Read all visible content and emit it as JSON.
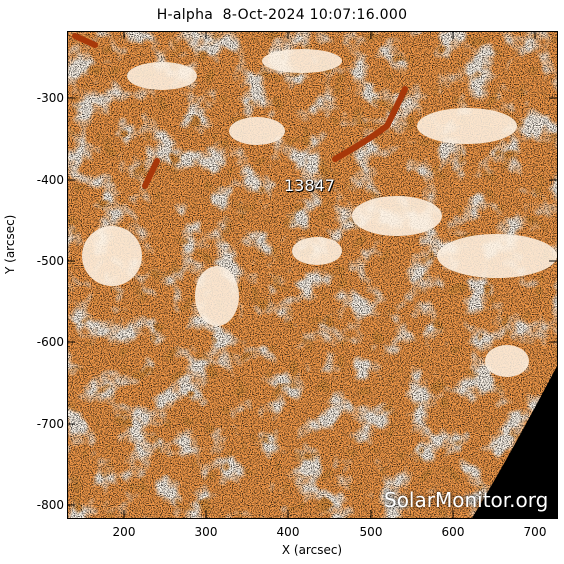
{
  "title": "H-alpha  8-Oct-2024 10:07:16.000",
  "x_axis": {
    "label": "X (arcsec)",
    "ticks": [
      "200",
      "300",
      "400",
      "500",
      "600",
      "700"
    ],
    "range": [
      130,
      730
    ]
  },
  "y_axis": {
    "label": "Y (arcsec)",
    "ticks": [
      "-300",
      "-400",
      "-500",
      "-600",
      "-700",
      "-800"
    ],
    "range": [
      -812,
      -237
    ]
  },
  "region_label": "13847",
  "watermark": "SolarMonitor.org",
  "colors": {
    "orange": "#f39a4a",
    "dark_orange": "#b8420f",
    "pale": "#ffe6c8",
    "limb_black": "#000000"
  }
}
